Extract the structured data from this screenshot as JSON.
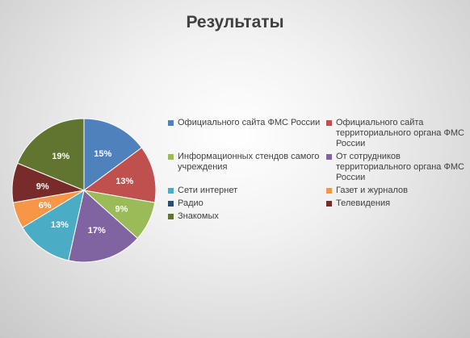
{
  "chart_data": {
    "type": "pie",
    "title": "Результаты",
    "categories": [
      "Официального сайта ФМС России",
      "Официального сайта территориального органа ФМС России",
      "Информационных стендов самого учреждения",
      "От сотрудников территориального органа ФМС России",
      "Сети интернет",
      "Газет и журналов",
      "Радио",
      "Телевидения",
      "Знакомых"
    ],
    "values": [
      15,
      13,
      9,
      17,
      13,
      6,
      0,
      9,
      19
    ],
    "value_labels": [
      "15%",
      "13%",
      "9%",
      "17%",
      "13%",
      "6%",
      "",
      "9%",
      "19%"
    ],
    "colors": [
      "#4F81BD",
      "#C0504D",
      "#9BBB59",
      "#8064A2",
      "#4BACC6",
      "#F79646",
      "#2C4D75",
      "#772C2A",
      "#5F7530"
    ],
    "legend_position": "right"
  }
}
